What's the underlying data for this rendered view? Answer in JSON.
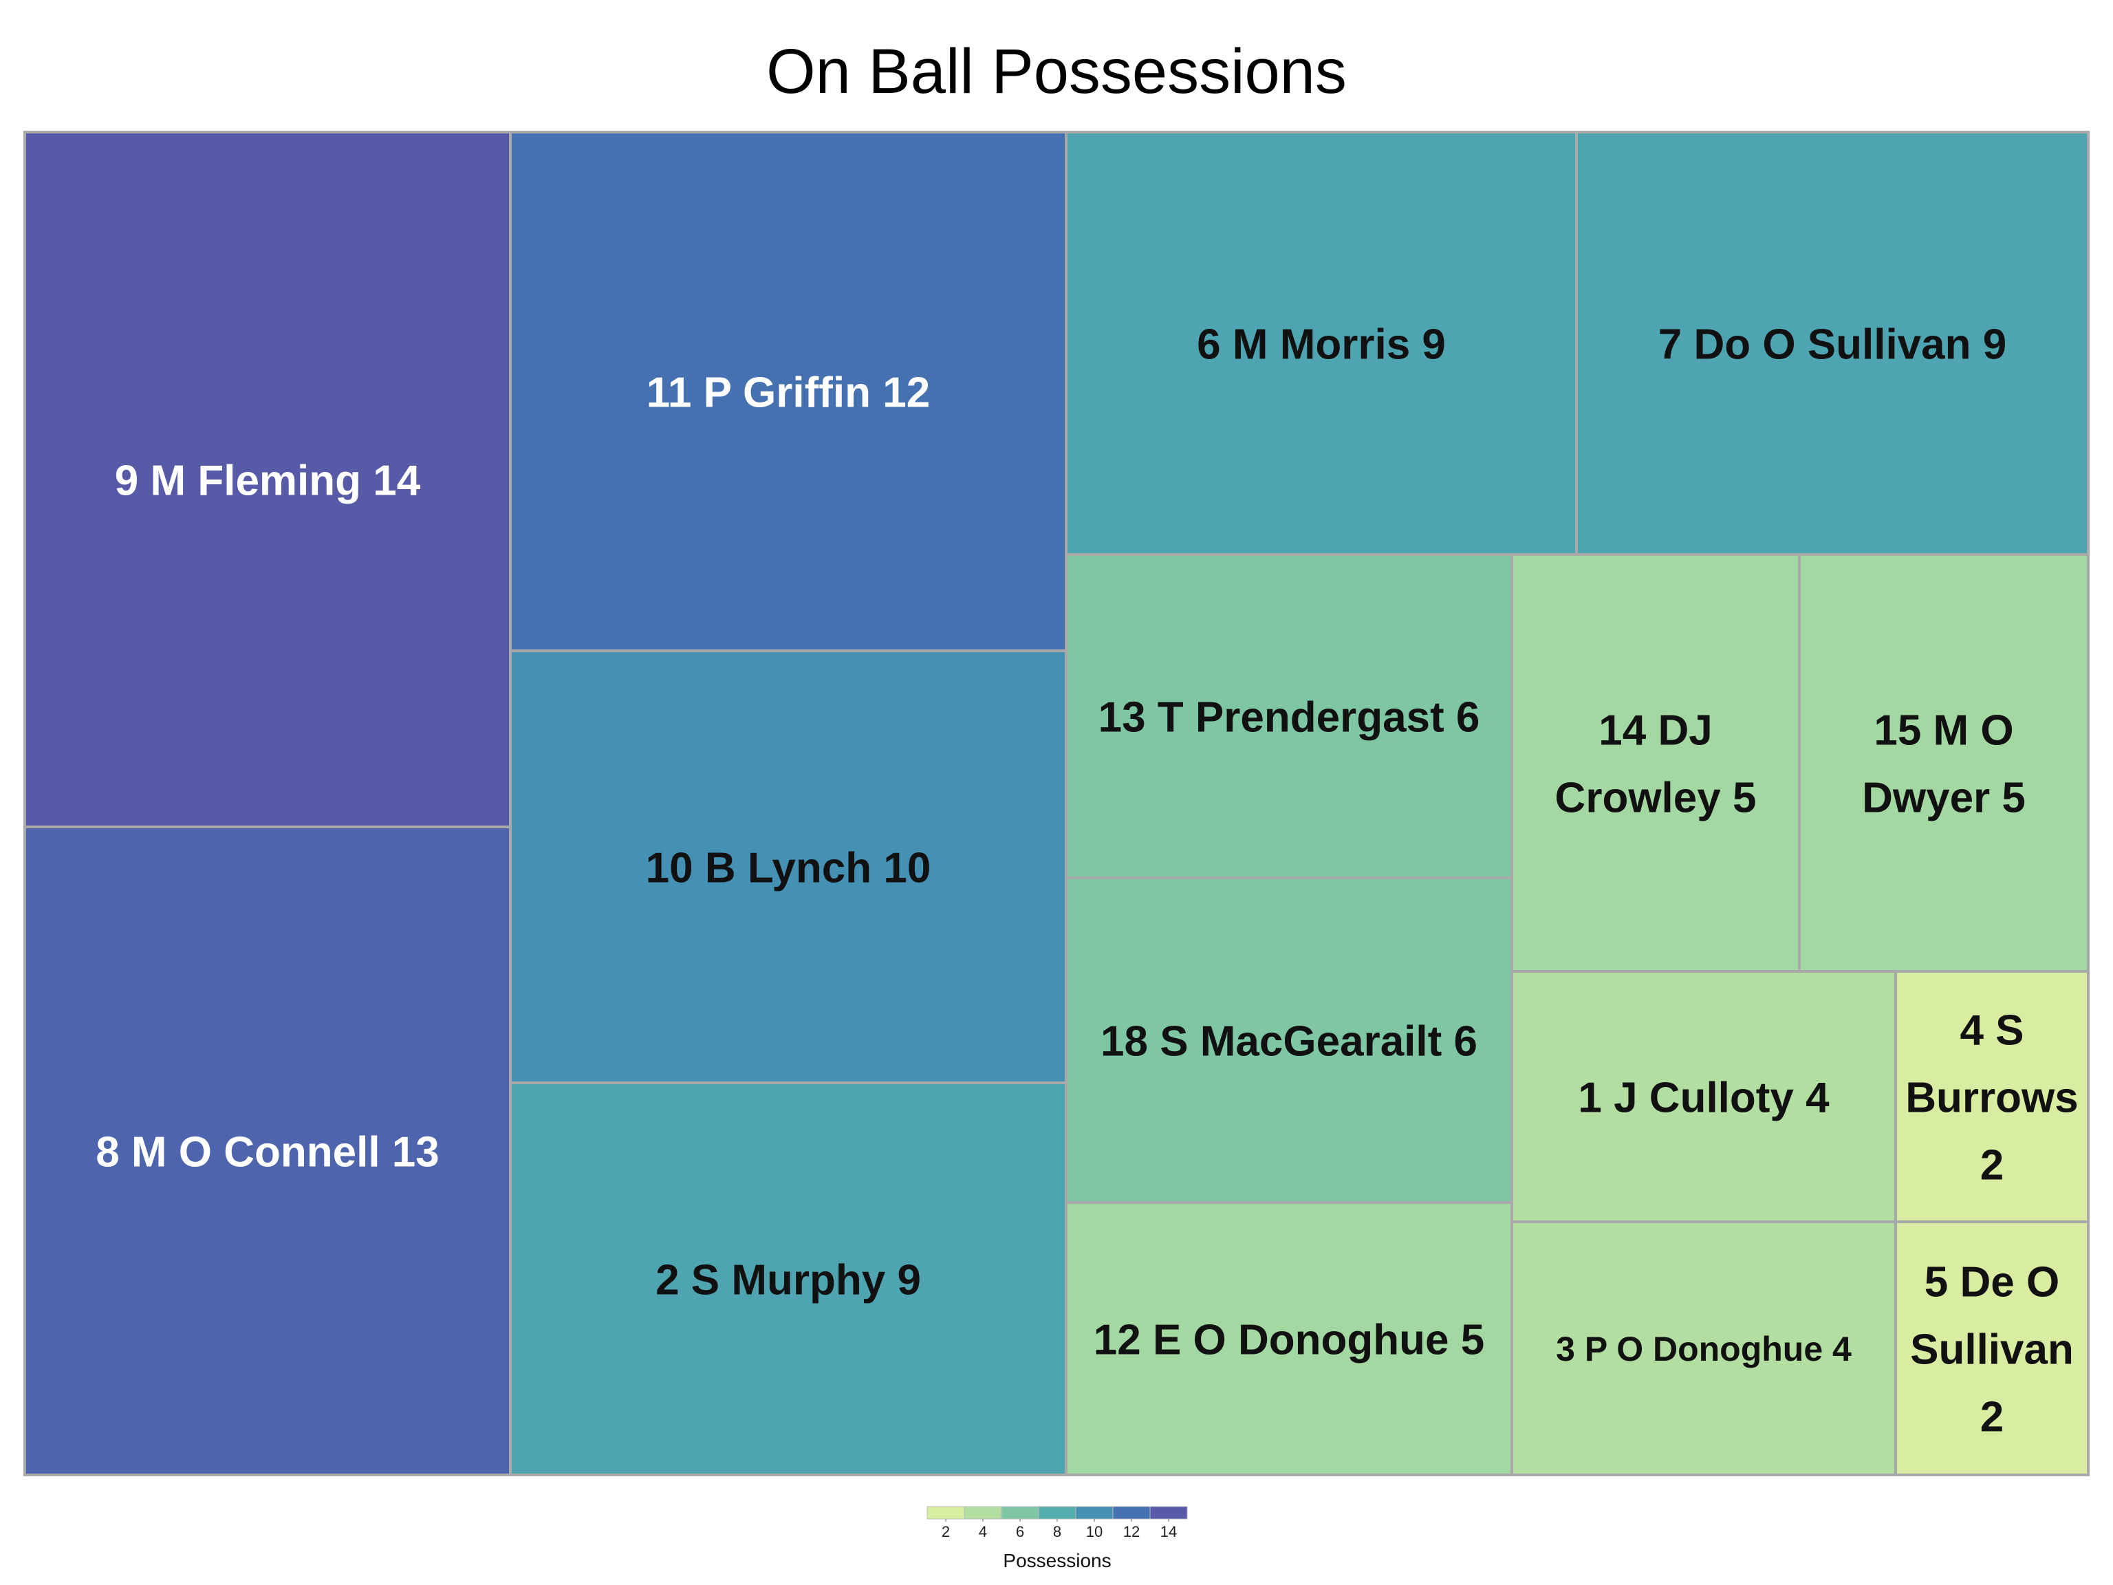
{
  "chart_data": {
    "type": "treemap",
    "title": "On Ball Possessions",
    "items": [
      {
        "label": "9 M Fleming 14",
        "value": 14
      },
      {
        "label": "8 M O Connell 13",
        "value": 13
      },
      {
        "label": "11 P Griffin 12",
        "value": 12
      },
      {
        "label": "10 B Lynch 10",
        "value": 10
      },
      {
        "label": "2 S Murphy 9",
        "value": 9
      },
      {
        "label": "6 M Morris 9",
        "value": 9
      },
      {
        "label": "7 Do O Sullivan 9",
        "value": 9
      },
      {
        "label": "13 T Prendergast 6",
        "value": 6
      },
      {
        "label": "18 S MacGearailt  6",
        "value": 6
      },
      {
        "label": "12 E O Donoghue 5",
        "value": 5
      },
      {
        "label": "14 DJ Crowley 5",
        "value": 5
      },
      {
        "label": "15 M O Dwyer 5",
        "value": 5
      },
      {
        "label": "1 J Culloty 4",
        "value": 4
      },
      {
        "label": "3 P O Donoghue 4",
        "value": 4
      },
      {
        "label": "4 S Burrows 2",
        "value": 2
      },
      {
        "label": "5 De O Sullivan 2",
        "value": 2
      }
    ],
    "legend": {
      "title": "Possessions",
      "ticks": [
        "2",
        "4",
        "6",
        "8",
        "10",
        "12",
        "14"
      ],
      "range": [
        1,
        15
      ]
    },
    "colorscale": [
      "#edf6a3",
      "#c3e39f",
      "#a3d8a2",
      "#5bb4a8",
      "#4ea5b1",
      "#3b7db6",
      "#4e64ac",
      "#5e4fa2"
    ]
  }
}
